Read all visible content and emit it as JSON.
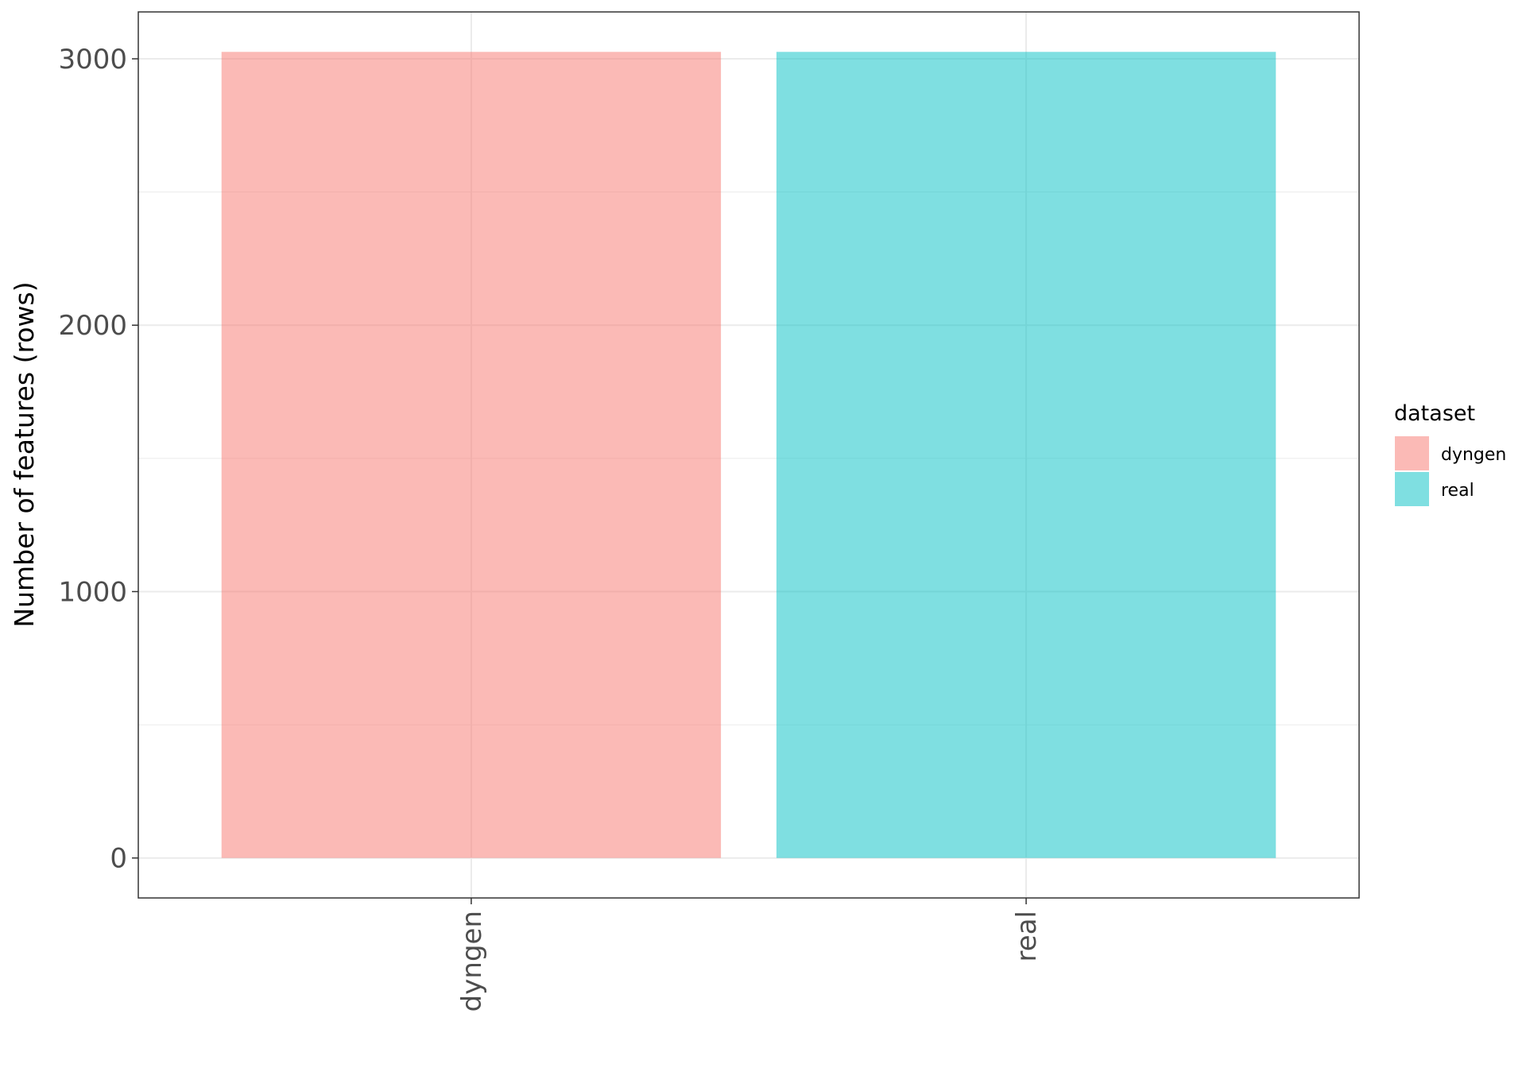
{
  "chart_data": {
    "type": "bar",
    "categories": [
      "dyngen",
      "real"
    ],
    "values": [
      3026,
      3026
    ],
    "colors": [
      "#F8766D",
      "#00BFC4"
    ],
    "bar_alpha": 0.5,
    "title": "",
    "xlabel": "",
    "ylabel": "Number of features (rows)",
    "ylim": [
      -150,
      3176
    ],
    "yticks": [
      0,
      1000,
      2000,
      3000
    ],
    "ytick_labels": [
      "0",
      "1000",
      "2000",
      "3000"
    ],
    "grid": true,
    "legend": {
      "title": "dataset",
      "position": "right",
      "entries": [
        "dyngen",
        "real"
      ]
    }
  }
}
